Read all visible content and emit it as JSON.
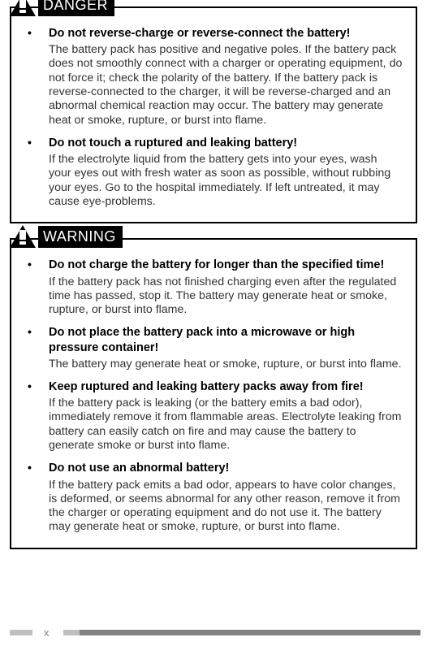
{
  "danger": {
    "label": "DANGER",
    "items": [
      {
        "heading": "Do not reverse-charge or reverse-connect the battery!",
        "body": "The battery pack has positive and negative poles.  If the battery pack does not smoothly connect with a charger or operating equipment, do not force it; check the polarity of the battery.  If the battery pack is reverse-connected to the charger, it will be reverse-charged and an abnormal chemical reaction may occur.  The battery may generate heat or smoke, rupture, or burst into flame."
      },
      {
        "heading": "Do not touch a ruptured and leaking battery!",
        "body": "If the electrolyte liquid from the battery gets into your eyes, wash your eyes out with fresh water as soon as possible, without rubbing your eyes.  Go to the hospital immediately.  If left untreated, it may cause eye-problems."
      }
    ]
  },
  "warning": {
    "label": "WARNING",
    "items": [
      {
        "heading": "Do not charge the battery for longer than the specified time!",
        "body": "If the battery pack has not finished charging even after the regulated time has passed, stop it.  The battery may generate heat or smoke, rupture, or burst into flame."
      },
      {
        "heading": "Do not place the battery pack into a microwave or high pressure container!",
        "body": "The battery may generate heat or smoke, rupture, or burst into flame."
      },
      {
        "heading": "Keep ruptured and leaking battery packs away from fire!",
        "body": "If the battery pack is leaking (or the battery emits a bad odor), immediately remove it from flammable areas.  Electrolyte leaking from battery can easily catch on fire and may cause the battery to generate smoke or burst into flame."
      },
      {
        "heading": "Do not use an abnormal battery!",
        "body": "If the battery pack emits a bad odor, appears to have color changes, is deformed, or seems abnormal for any other reason, remove it from the charger or operating equipment and do not use it.  The battery may generate heat or smoke, rupture, or burst into flame."
      }
    ]
  },
  "page_number": "x"
}
